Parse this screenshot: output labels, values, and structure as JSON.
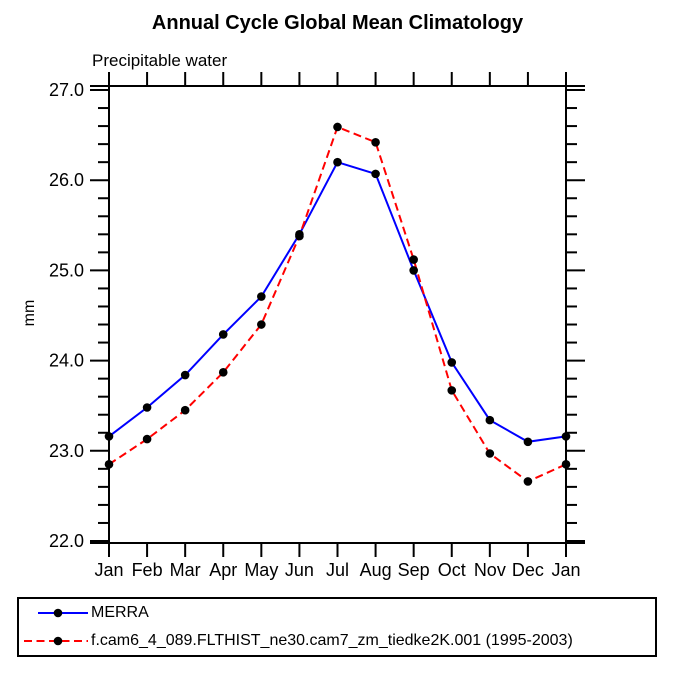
{
  "chart": {
    "title": "Annual Cycle Global Mean Climatology",
    "subtitle": "Precipitable water",
    "ylabel": "mm"
  },
  "colors": {
    "axis": "#000000",
    "background": "#ffffff",
    "merra_line": "#0000ff",
    "model_line": "#ff0000",
    "marker": "#000000"
  },
  "chart_data": {
    "type": "line",
    "title": "Annual Cycle Global Mean Climatology",
    "subtitle": "Precipitable water",
    "xlabel": "",
    "ylabel": "mm",
    "categories": [
      "Jan",
      "Feb",
      "Mar",
      "Apr",
      "May",
      "Jun",
      "Jul",
      "Aug",
      "Sep",
      "Oct",
      "Nov",
      "Dec",
      "Jan"
    ],
    "ylim": [
      22.0,
      27.0
    ],
    "ytick_major": 1.0,
    "ytick_minor": 0.2,
    "ytick_labels": [
      "22.0",
      "23.0",
      "24.0",
      "25.0",
      "26.0",
      "27.0"
    ],
    "grid": false,
    "legend_position": "bottom-left-box",
    "series": [
      {
        "name": "MERRA",
        "color": "#0000ff",
        "style": "solid",
        "marker": "circle",
        "marker_color": "#000000",
        "values": [
          23.16,
          23.48,
          23.84,
          24.29,
          24.71,
          25.4,
          26.2,
          26.07,
          25.0,
          23.98,
          23.34,
          23.1,
          23.16
        ]
      },
      {
        "name": "f.cam6_4_089.FLTHIST_ne30.cam7_zm_tiedke2K.001 (1995-2003)",
        "color": "#ff0000",
        "style": "dashed",
        "marker": "circle",
        "marker_color": "#000000",
        "values": [
          22.85,
          23.13,
          23.45,
          23.87,
          24.4,
          25.38,
          26.59,
          26.42,
          25.12,
          23.67,
          22.97,
          22.66,
          22.85
        ]
      }
    ]
  }
}
